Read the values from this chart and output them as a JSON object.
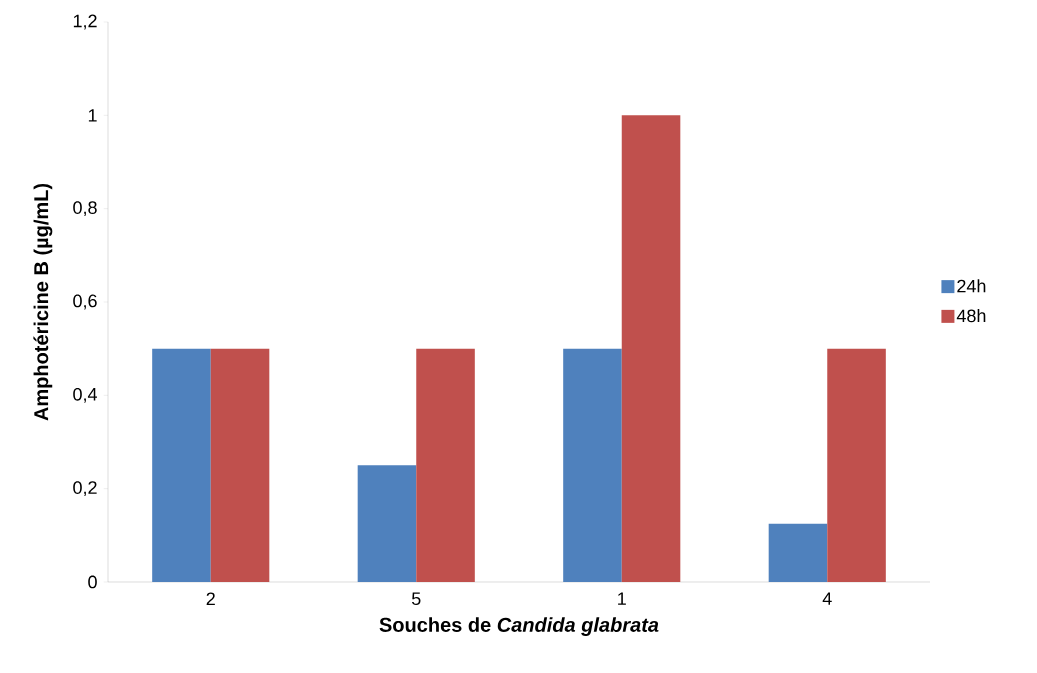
{
  "chart_data": {
    "type": "bar",
    "xlabel": "Souches de *Candida glabrata*",
    "ylabel": "Amphotéricine B (µg/mL)",
    "categories": [
      "2",
      "5",
      "1",
      "4"
    ],
    "series": [
      {
        "name": "24h",
        "color": "#4f81bd",
        "values": [
          0.5,
          0.25,
          0.5,
          0.125
        ]
      },
      {
        "name": "48h",
        "color": "#c0504d",
        "values": [
          0.5,
          0.5,
          1,
          0.5
        ]
      }
    ],
    "ylim": [
      0,
      1.2
    ],
    "yticks": [
      0,
      {
        "value": 0.2,
        "label": "0,2"
      },
      {
        "value": 0.4,
        "label": "0,4"
      },
      {
        "value": 0.6,
        "label": "0,6"
      },
      {
        "value": 0.8,
        "label": "0,8"
      },
      1,
      {
        "value": 1.2,
        "label": "1,2"
      }
    ],
    "legend": "right",
    "grid": false
  }
}
